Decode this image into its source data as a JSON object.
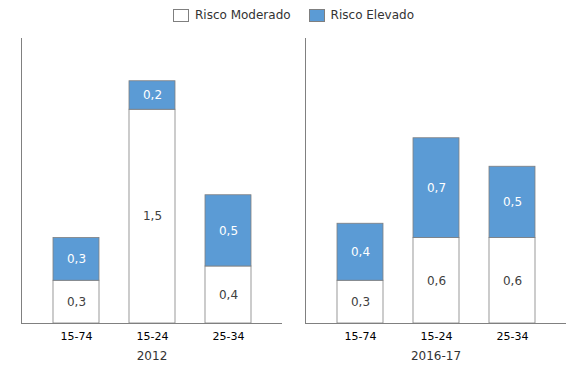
{
  "chart_data": {
    "type": "bar",
    "stacked": true,
    "data_labels": true,
    "groups": [
      "2012",
      "2016-17"
    ],
    "categories": [
      "15-74",
      "15-24",
      "25-34"
    ],
    "series": [
      {
        "name": "Risco Moderado",
        "color": "#ffffff",
        "values": [
          [
            0.3,
            1.5,
            0.4
          ],
          [
            0.3,
            0.6,
            0.6
          ]
        ],
        "value_labels": [
          [
            "0,3",
            "1,5",
            "0,4"
          ],
          [
            "0,3",
            "0,6",
            "0,6"
          ]
        ]
      },
      {
        "name": "Risco Elevado",
        "color": "#5b9bd5",
        "values": [
          [
            0.3,
            0.2,
            0.5
          ],
          [
            0.4,
            0.7,
            0.5
          ]
        ],
        "value_labels": [
          [
            "0,3",
            "0,2",
            "0,5"
          ],
          [
            "0,4",
            "0,7",
            "0,5"
          ]
        ]
      }
    ],
    "ylim": [
      0,
      2.0
    ],
    "tick_labels": "x",
    "legend": "top"
  }
}
